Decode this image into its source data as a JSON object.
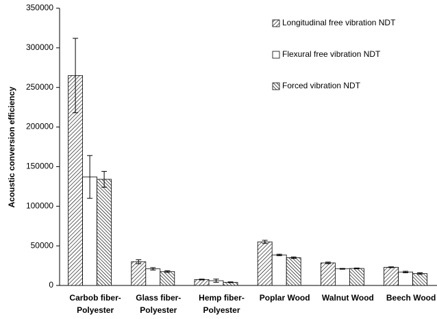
{
  "chart_data": {
    "type": "bar",
    "ylabel": "Acoustic conversion efficiency",
    "categories": [
      [
        "Carbob fiber-",
        "Polyester"
      ],
      [
        "Glass fiber-",
        "Polyester"
      ],
      [
        "Hemp fiber-",
        "Polyester"
      ],
      [
        "Poplar Wood"
      ],
      [
        "Walnut Wood"
      ],
      [
        "Beech Wood"
      ]
    ],
    "series": [
      {
        "name": "Longitudinal free vibration NDT",
        "color": "#000000",
        "hatch": "/",
        "values": [
          265000,
          30000,
          7500,
          55000,
          28500,
          23000
        ],
        "errors": [
          47000,
          2500,
          500,
          2000,
          1000,
          500
        ]
      },
      {
        "name": "Flexural free vibration NDT",
        "color": "#000000",
        "hatch": "none",
        "values": [
          137000,
          21000,
          6000,
          38500,
          21000,
          17000
        ],
        "errors": [
          27000,
          1500,
          2000,
          1000,
          500,
          1000
        ]
      },
      {
        "name": "Forced vibration NDT",
        "color": "#000000",
        "hatch": "\\",
        "values": [
          134000,
          17500,
          4000,
          35000,
          21500,
          15000
        ],
        "errors": [
          10000,
          1000,
          500,
          1000,
          500,
          1000
        ]
      }
    ],
    "ylim": [
      0,
      350000
    ],
    "yticks": [
      0,
      50000,
      100000,
      150000,
      200000,
      250000,
      300000,
      350000
    ],
    "grid": false,
    "legend": "upper right"
  }
}
